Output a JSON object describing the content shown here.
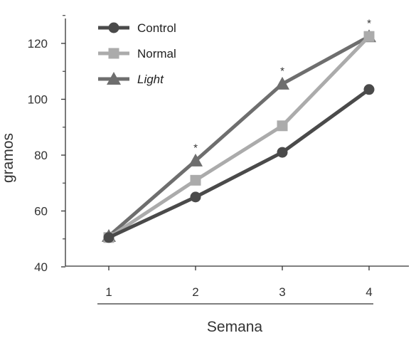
{
  "chart_data": {
    "type": "line",
    "xlabel": "Semana",
    "ylabel": "gramos",
    "categories": [
      "1",
      "2",
      "3",
      "4"
    ],
    "yticks": [
      40,
      60,
      80,
      100,
      120
    ],
    "ylim": [
      40,
      130
    ],
    "grid": false,
    "legend_position": "top-left",
    "series": [
      {
        "name": "Control",
        "values": [
          50.5,
          65,
          81,
          103.5
        ],
        "marker": "circle",
        "color": "#4a4a4a"
      },
      {
        "name": "Normal",
        "values": [
          50.5,
          71,
          90.5,
          122.5
        ],
        "marker": "square",
        "color": "#ababab"
      },
      {
        "name": "Light",
        "values": [
          51,
          78,
          105.5,
          122.5
        ],
        "marker": "triangle",
        "color": "#6e6e6e",
        "italic": true
      }
    ],
    "annotations": [
      {
        "x": "2",
        "text": "*",
        "y": 84
      },
      {
        "x": "3",
        "text": "*",
        "y": 111.5
      },
      {
        "x": "4",
        "text": "*",
        "y": 128.5
      }
    ]
  }
}
